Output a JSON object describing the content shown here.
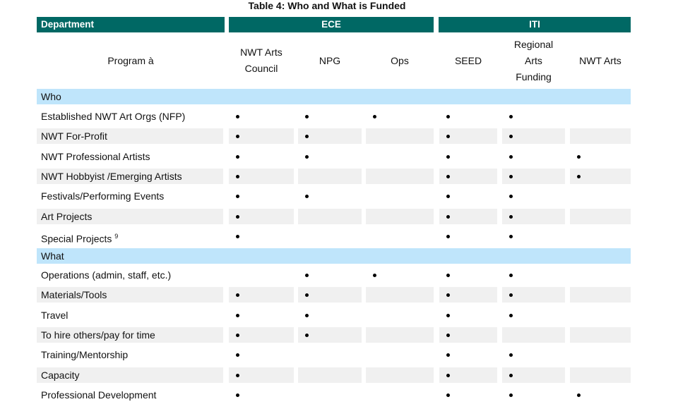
{
  "title": "Table 4: Who and What is Funded",
  "departments": [
    {
      "label": "Department"
    },
    {
      "label": "ECE"
    },
    {
      "label": "ITI"
    }
  ],
  "program_label": "Program  à",
  "programs": [
    "NWT Arts Council",
    "NPG",
    "Ops",
    "SEED",
    "Regional Arts Funding",
    "NWT Arts"
  ],
  "sections": [
    {
      "label": "Who",
      "rows": [
        {
          "label": "Established NWT Art Orgs (NFP)",
          "funded": [
            true,
            true,
            true,
            true,
            true,
            false
          ]
        },
        {
          "label": "NWT For-Profit",
          "funded": [
            true,
            true,
            false,
            true,
            true,
            false
          ]
        },
        {
          "label": "NWT Professional Artists",
          "funded": [
            true,
            true,
            false,
            true,
            true,
            true
          ]
        },
        {
          "label": "NWT Hobbyist /Emerging Artists",
          "funded": [
            true,
            false,
            false,
            true,
            true,
            true
          ]
        },
        {
          "label": "Festivals/Performing Events",
          "funded": [
            true,
            true,
            false,
            true,
            true,
            false
          ]
        },
        {
          "label": "Art Projects",
          "funded": [
            true,
            false,
            false,
            true,
            true,
            false
          ]
        },
        {
          "label": "Special Projects",
          "footnote": "9",
          "funded": [
            true,
            false,
            false,
            true,
            true,
            false
          ]
        }
      ]
    },
    {
      "label": "What",
      "rows": [
        {
          "label": "Operations (admin, staff, etc.)",
          "funded": [
            false,
            true,
            true,
            true,
            true,
            false
          ]
        },
        {
          "label": "Materials/Tools",
          "funded": [
            true,
            true,
            false,
            true,
            true,
            false
          ]
        },
        {
          "label": "Travel",
          "funded": [
            true,
            true,
            false,
            true,
            true,
            false
          ]
        },
        {
          "label": "To hire others/pay for time",
          "funded": [
            true,
            true,
            false,
            true,
            false,
            false
          ]
        },
        {
          "label": "Training/Mentorship",
          "funded": [
            true,
            false,
            false,
            true,
            true,
            false
          ]
        },
        {
          "label": "Capacity",
          "funded": [
            true,
            false,
            false,
            true,
            true,
            false
          ]
        },
        {
          "label": "Professional Development",
          "funded": [
            true,
            false,
            false,
            true,
            true,
            true
          ]
        }
      ]
    }
  ],
  "colors": {
    "department_header": "#006864",
    "section_band": "#bfe5fb",
    "row_shade": "#f0f0f0"
  }
}
